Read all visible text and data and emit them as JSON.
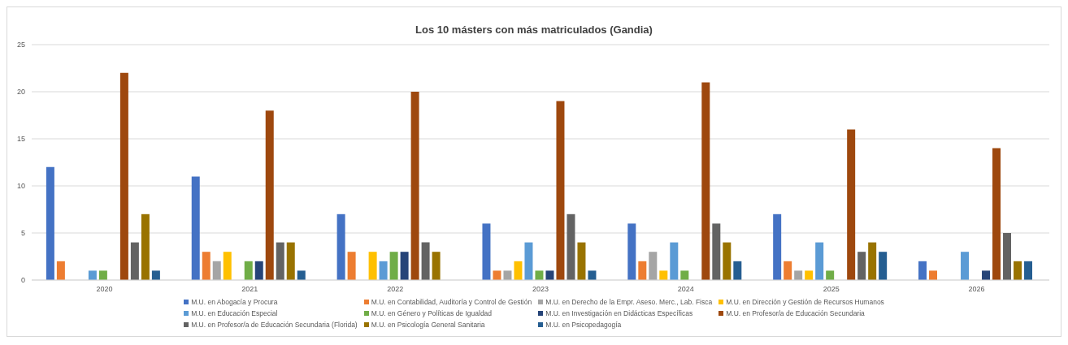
{
  "chart_data": {
    "type": "bar",
    "title": "Los 10 másters con más matriculados (Gandia)",
    "categories": [
      "2020",
      "2021",
      "2022",
      "2023",
      "2024",
      "2025",
      "2026"
    ],
    "series": [
      {
        "name": "M.U. en Abogacía y Procura",
        "color": "#4472c4",
        "values": [
          12,
          11,
          7,
          6,
          6,
          7,
          2
        ]
      },
      {
        "name": "M.U. en Contabilidad, Auditoría y Control de Gestión",
        "color": "#ed7d31",
        "values": [
          2,
          3,
          3,
          1,
          2,
          2,
          1
        ]
      },
      {
        "name": "M.U. en Derecho de la Empr. Aseso. Merc., Lab. Fisca",
        "color": "#a5a5a5",
        "values": [
          null,
          2,
          null,
          1,
          3,
          1,
          null
        ]
      },
      {
        "name": "M.U. en Dirección y Gestión de Recursos Humanos",
        "color": "#ffc000",
        "values": [
          null,
          3,
          3,
          2,
          1,
          1,
          null
        ]
      },
      {
        "name": "M.U. en Educación Especial",
        "color": "#5b9bd5",
        "values": [
          1,
          null,
          2,
          4,
          4,
          4,
          3
        ]
      },
      {
        "name": "M.U. en Género y Políticas de Igualdad",
        "color": "#70ad47",
        "values": [
          1,
          2,
          3,
          1,
          1,
          1,
          null
        ]
      },
      {
        "name": "M.U. en Investigación en Didácticas Específicas",
        "color": "#264478",
        "values": [
          null,
          2,
          3,
          1,
          null,
          null,
          1
        ]
      },
      {
        "name": "M.U. en Profesor/a de Educación Secundaria",
        "color": "#9e480e",
        "values": [
          22,
          18,
          20,
          19,
          21,
          16,
          14
        ]
      },
      {
        "name": "M.U. en Profesor/a de Educación Secundaria (Florida)",
        "color": "#636363",
        "values": [
          4,
          4,
          4,
          7,
          6,
          3,
          5
        ]
      },
      {
        "name": "M.U. en Psicología General Sanitaria",
        "color": "#997300",
        "values": [
          7,
          4,
          3,
          4,
          4,
          4,
          2
        ]
      },
      {
        "name": "M.U. en Psicopedagogía",
        "color": "#255e91",
        "values": [
          1,
          1,
          null,
          1,
          2,
          3,
          2
        ]
      }
    ],
    "ylim": [
      0,
      25
    ],
    "yticks": [
      0,
      5,
      10,
      15,
      20,
      25
    ],
    "grid": "y",
    "legend": "bottom"
  }
}
